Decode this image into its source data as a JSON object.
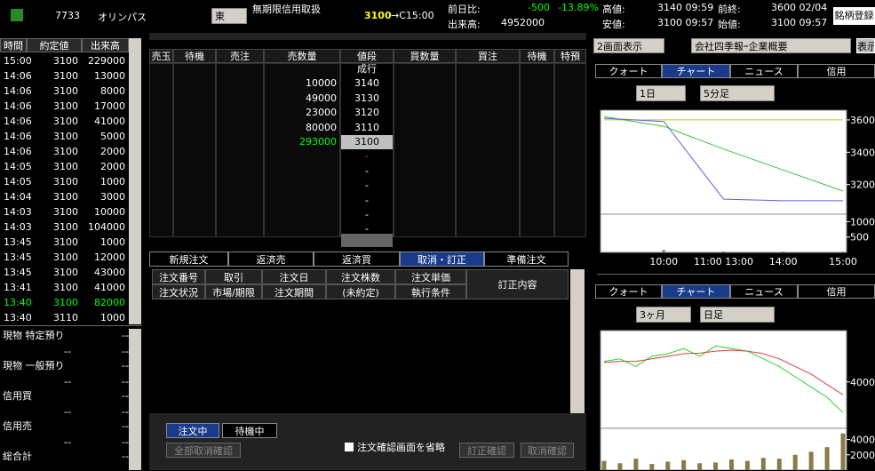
{
  "header": {
    "code": "7733",
    "name": "オリンパス",
    "market": "東",
    "margin": "無期限信用取扱",
    "price": "3100",
    "price_time": "→C15:00",
    "change_label": "前日比:",
    "change": "-500",
    "change_pct": "-13.89%",
    "volume_label": "出来高:",
    "volume": "4952000",
    "high_label": "高値:",
    "high": "3140 09:59",
    "prev_close_label": "前終:",
    "prev_close": "3600 02/04",
    "low_label": "安値:",
    "low": "3100 09:57",
    "open_label": "始値:",
    "open": "3100 09:57",
    "register": "銘柄登録"
  },
  "tape": {
    "headers": [
      "時間",
      "約定値",
      "出来高"
    ],
    "rows": [
      [
        "15:00",
        "3100",
        "229000"
      ],
      [
        "14:06",
        "3100",
        "13000"
      ],
      [
        "14:06",
        "3100",
        "8000"
      ],
      [
        "14:06",
        "3100",
        "17000"
      ],
      [
        "14:06",
        "3100",
        "41000"
      ],
      [
        "14:06",
        "3100",
        "5000"
      ],
      [
        "14:06",
        "3100",
        "2000"
      ],
      [
        "14:05",
        "3100",
        "2000"
      ],
      [
        "14:05",
        "3100",
        "1000"
      ],
      [
        "14:04",
        "3100",
        "3000"
      ],
      [
        "14:03",
        "3100",
        "10000"
      ],
      [
        "14:03",
        "3100",
        "104000"
      ],
      [
        "13:45",
        "3100",
        "1000"
      ],
      [
        "13:45",
        "3100",
        "12000"
      ],
      [
        "13:45",
        "3100",
        "43000"
      ],
      [
        "13:41",
        "3100",
        "41000"
      ],
      [
        "13:40",
        "3100",
        "82000"
      ],
      [
        "13:40",
        "3110",
        "1000"
      ]
    ]
  },
  "positions": [
    {
      "label": "現物 特定預り",
      "values": [
        "--",
        "--",
        "--"
      ]
    },
    {
      "label": "現物 一般預り",
      "values": [
        "--",
        "--",
        "--"
      ]
    },
    {
      "label": "信用買",
      "values": [
        "--",
        "--",
        "--"
      ]
    },
    {
      "label": "信用売",
      "values": [
        "--",
        "--",
        "--"
      ]
    },
    {
      "label": "総合計",
      "values": [
        "--"
      ]
    }
  ],
  "board": {
    "headers": [
      "売玉",
      "待機",
      "売注",
      "売数量",
      "値段",
      "買数量",
      "買注",
      "待機",
      "特預"
    ],
    "rows": [
      [
        "",
        "成行"
      ],
      [
        "10000",
        "3140"
      ],
      [
        "49000",
        "3130"
      ],
      [
        "23000",
        "3120"
      ],
      [
        "80000",
        "3110"
      ],
      [
        "293000",
        "3100"
      ],
      [
        "",
        "-"
      ],
      [
        "",
        "-"
      ],
      [
        "",
        "-"
      ],
      [
        "",
        "-"
      ],
      [
        "",
        "-"
      ],
      [
        "",
        "-"
      ]
    ]
  },
  "order_tabs": [
    "新規注文",
    "返済売",
    "返済買",
    "取消・訂正",
    "準備注文"
  ],
  "order_headers": [
    [
      "注文番号",
      "注文状況"
    ],
    [
      "取引",
      "市場/期限"
    ],
    [
      "注文日",
      "注文期間"
    ],
    [
      "注文株数",
      "(未約定)"
    ],
    [
      "注文単価",
      "執行条件"
    ],
    [
      "訂正内容"
    ]
  ],
  "order_buttons": {
    "active": "注文中",
    "waiting": "待機中",
    "cancel_all": "全部取消確認",
    "skip": "注文確認画面を省略",
    "amend": "訂正確認",
    "cancel": "取消確認"
  },
  "right": {
    "mode": "2画面表示",
    "info": "会社四季報ｰ企業概要",
    "show": "表示",
    "tabs": [
      "クォート",
      "チャート",
      "ニュース",
      "信用"
    ]
  },
  "chart_data": [
    {
      "type": "line",
      "period": "1日",
      "interval": "5分足",
      "categories": [
        null,
        "10:00",
        "11:00 13:00",
        "14:00",
        "15:00"
      ],
      "series": [
        {
          "color": "#d8c020",
          "values": [
            3600,
            3600,
            3600,
            3600,
            3600
          ]
        },
        {
          "color": "#40c040",
          "values": [
            3620,
            3560,
            3420,
            3290,
            3160
          ]
        },
        {
          "color": "#6060e0",
          "values": [
            3610,
            3590,
            3110,
            3100,
            3100
          ]
        }
      ],
      "ylim": [
        3050,
        3660
      ],
      "yticks": [
        3600,
        3400,
        3200
      ],
      "volume": [
        null,
        80,
        30,
        25,
        20
      ],
      "vlim": [
        0,
        1100
      ],
      "vticks": [
        500,
        1000
      ]
    },
    {
      "type": "line",
      "period": "3ヶ月",
      "interval": "日足",
      "categories": [
        null,
        null,
        null,
        null,
        null,
        null,
        null,
        null,
        null,
        null,
        null,
        null,
        null,
        null,
        null,
        null
      ],
      "series": [
        {
          "color": "#30d030",
          "values": [
            4400,
            4450,
            4300,
            4500,
            4550,
            4650,
            4500,
            4700,
            4650,
            4600,
            4450,
            4300,
            4100,
            3900,
            3700,
            3400
          ]
        },
        {
          "color": "#e04040",
          "values": [
            4380,
            4400,
            4400,
            4450,
            4500,
            4550,
            4560,
            4600,
            4620,
            4600,
            4550,
            4450,
            4300,
            4150,
            3950,
            3750
          ]
        }
      ],
      "ylim": [
        3200,
        5000
      ],
      "yticks": [
        4000
      ],
      "volume": [
        1200,
        900,
        1500,
        800,
        1100,
        1300,
        900,
        1000,
        1400,
        1200,
        1600,
        1500,
        2000,
        2400,
        3000,
        4800
      ],
      "vlim": [
        0,
        5000
      ],
      "vticks": [
        2000,
        4000
      ]
    }
  ]
}
